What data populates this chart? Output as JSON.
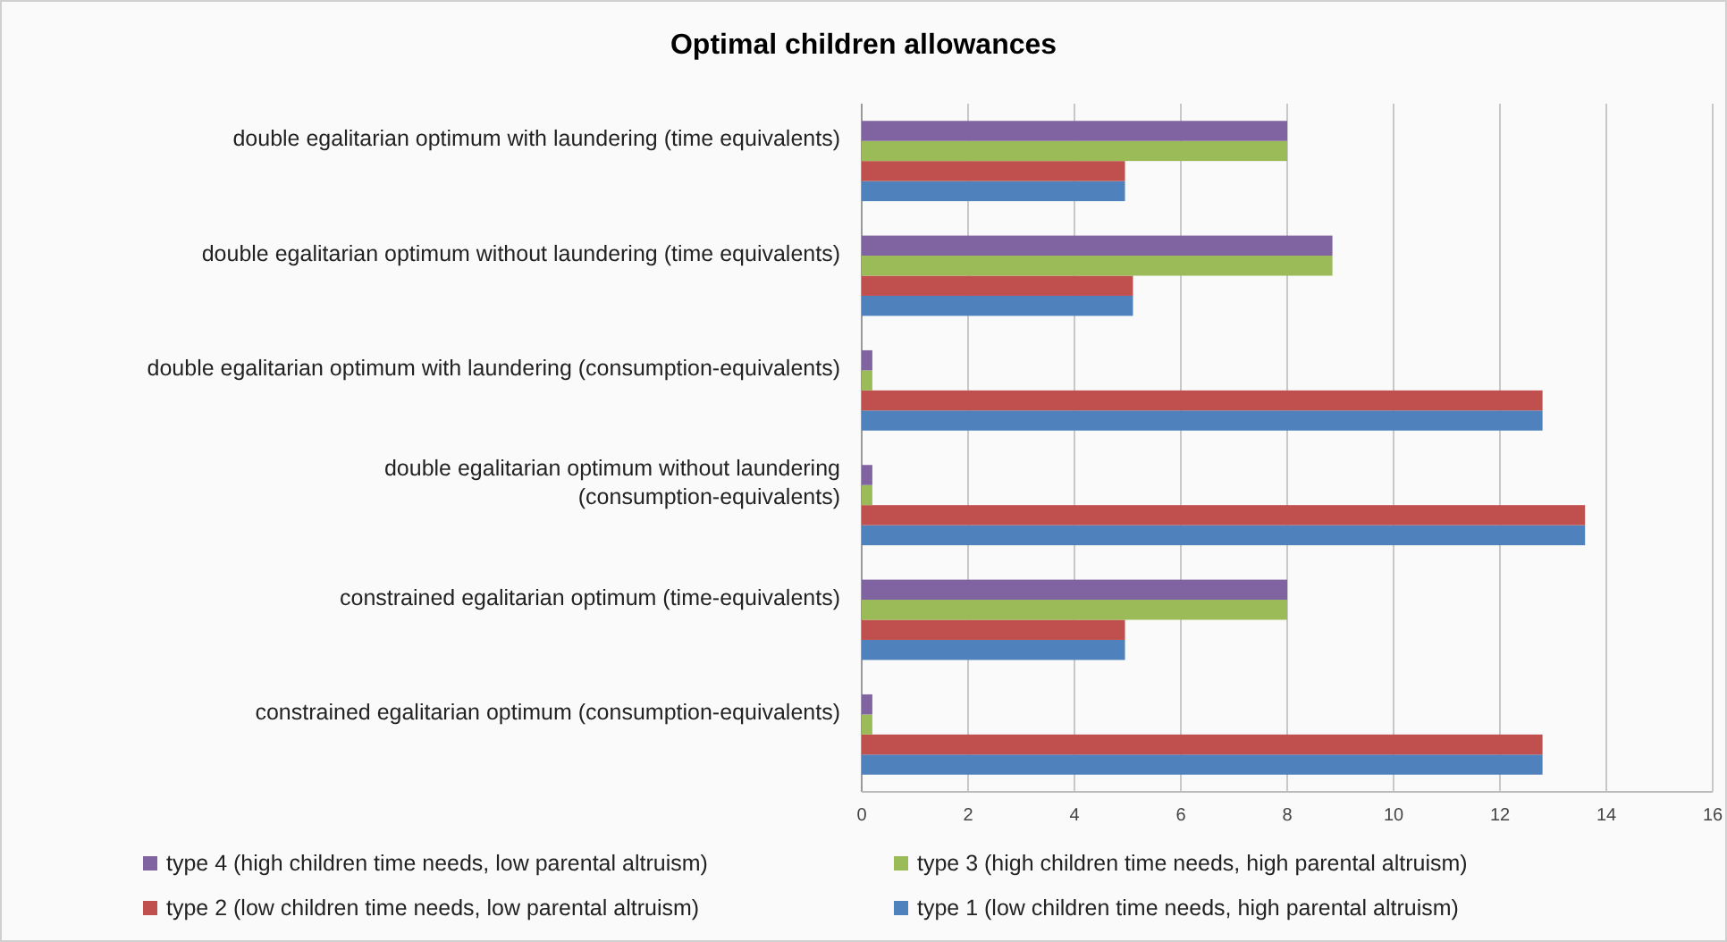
{
  "chart_data": {
    "type": "bar",
    "orientation": "horizontal",
    "title": "Optimal children allowances",
    "categories": [
      "double egalitarian optimum with laundering (time equivalents)",
      "double egalitarian optimum without laundering (time equivalents)",
      "double egalitarian optimum with laundering (consumption-equivalents)",
      "double egalitarian optimum without laundering (consumption-equivalents)",
      "constrained egalitarian optimum (time-equivalents)",
      "constrained egalitarian optimum (consumption-equivalents)"
    ],
    "series": [
      {
        "name": "type 1 (low children time needs, high parental altruism)",
        "color": "#4f81bd",
        "values": [
          4.95,
          5.1,
          12.8,
          13.6,
          4.95,
          12.8
        ]
      },
      {
        "name": "type 2 (low children time needs, low parental altruism)",
        "color": "#c0504d",
        "values": [
          4.95,
          5.1,
          12.8,
          13.6,
          4.95,
          12.8
        ]
      },
      {
        "name": "type 3 (high children time needs, high parental altruism)",
        "color": "#9bbb59",
        "values": [
          8,
          8.85,
          0.2,
          0.2,
          8,
          0.2
        ]
      },
      {
        "name": "type 4 (high children time needs, low parental altruism)",
        "color": "#8064a2",
        "values": [
          8,
          8.85,
          0.2,
          0.2,
          8,
          0.2
        ]
      }
    ],
    "xlim": [
      0,
      16
    ],
    "xticks": [
      0,
      2,
      4,
      6,
      8,
      10,
      12,
      14,
      16
    ],
    "grid": "x",
    "legend": "bottom"
  }
}
